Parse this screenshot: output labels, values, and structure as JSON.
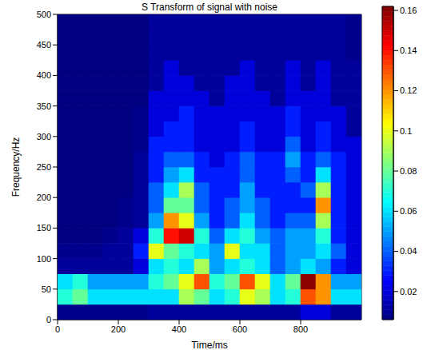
{
  "chart_data": {
    "type": "heatmap",
    "title": "S Transform of signal with noise",
    "xlabel": "Time/ms",
    "ylabel": "Frequency/Hz",
    "xlim": [
      0,
      1000
    ],
    "xticks": [
      0,
      200,
      400,
      600,
      800
    ],
    "ylim": [
      0,
      500
    ],
    "yticks": [
      0,
      50,
      100,
      150,
      200,
      250,
      300,
      350,
      400,
      450,
      500
    ],
    "grid": false,
    "x": [
      25,
      75,
      125,
      175,
      225,
      275,
      325,
      375,
      425,
      475,
      525,
      575,
      625,
      675,
      725,
      775,
      825,
      875,
      925,
      975
    ],
    "y": [
      12.5,
      37.5,
      62.5,
      87.5,
      112.5,
      137.5,
      162.5,
      187.5,
      212.5,
      237.5,
      262.5,
      287.5,
      312.5,
      337.5,
      362.5,
      387.5,
      412.5,
      437.5,
      462.5,
      487.5
    ],
    "cells": [
      [
        0.008,
        0.008,
        0.008,
        0.008,
        0.008,
        0.008,
        0.01,
        0.01,
        0.01,
        0.01,
        0.01,
        0.01,
        0.01,
        0.01,
        0.01,
        0.01,
        0.02,
        0.02,
        0.01,
        0.01
      ],
      [
        0.07,
        0.08,
        0.06,
        0.06,
        0.06,
        0.06,
        0.06,
        0.06,
        0.09,
        0.08,
        0.06,
        0.07,
        0.1,
        0.09,
        0.06,
        0.07,
        0.13,
        0.12,
        0.06,
        0.06
      ],
      [
        0.06,
        0.07,
        0.05,
        0.05,
        0.05,
        0.05,
        0.07,
        0.08,
        0.1,
        0.13,
        0.07,
        0.08,
        0.13,
        0.1,
        0.06,
        0.08,
        0.16,
        0.12,
        0.05,
        0.05
      ],
      [
        0.01,
        0.01,
        0.01,
        0.01,
        0.01,
        0.02,
        0.06,
        0.07,
        0.06,
        0.09,
        0.05,
        0.06,
        0.07,
        0.06,
        0.04,
        0.05,
        0.06,
        0.05,
        0.03,
        0.02
      ],
      [
        0.008,
        0.008,
        0.008,
        0.01,
        0.01,
        0.03,
        0.1,
        0.08,
        0.07,
        0.06,
        0.05,
        0.1,
        0.06,
        0.06,
        0.04,
        0.05,
        0.05,
        0.06,
        0.04,
        0.02
      ],
      [
        0.006,
        0.006,
        0.006,
        0.008,
        0.01,
        0.02,
        0.07,
        0.14,
        0.15,
        0.07,
        0.04,
        0.06,
        0.07,
        0.05,
        0.04,
        0.05,
        0.05,
        0.07,
        0.03,
        0.02
      ],
      [
        0.006,
        0.006,
        0.006,
        0.006,
        0.008,
        0.01,
        0.05,
        0.12,
        0.1,
        0.05,
        0.03,
        0.04,
        0.06,
        0.04,
        0.03,
        0.04,
        0.04,
        0.09,
        0.03,
        0.02
      ],
      [
        0.006,
        0.006,
        0.006,
        0.006,
        0.008,
        0.01,
        0.04,
        0.08,
        0.08,
        0.04,
        0.03,
        0.04,
        0.05,
        0.04,
        0.03,
        0.03,
        0.03,
        0.12,
        0.03,
        0.02
      ],
      [
        0.006,
        0.006,
        0.006,
        0.006,
        0.006,
        0.01,
        0.04,
        0.06,
        0.09,
        0.04,
        0.03,
        0.03,
        0.05,
        0.03,
        0.03,
        0.03,
        0.04,
        0.09,
        0.03,
        0.02
      ],
      [
        0.006,
        0.006,
        0.006,
        0.006,
        0.006,
        0.01,
        0.03,
        0.05,
        0.06,
        0.03,
        0.03,
        0.03,
        0.04,
        0.03,
        0.03,
        0.04,
        0.03,
        0.06,
        0.03,
        0.02
      ],
      [
        0.006,
        0.006,
        0.006,
        0.006,
        0.006,
        0.01,
        0.03,
        0.04,
        0.04,
        0.03,
        0.02,
        0.03,
        0.04,
        0.03,
        0.03,
        0.05,
        0.03,
        0.04,
        0.03,
        0.02
      ],
      [
        0.006,
        0.006,
        0.006,
        0.006,
        0.006,
        0.008,
        0.03,
        0.03,
        0.03,
        0.02,
        0.02,
        0.02,
        0.03,
        0.02,
        0.02,
        0.04,
        0.02,
        0.03,
        0.02,
        0.02
      ],
      [
        0.006,
        0.006,
        0.006,
        0.006,
        0.006,
        0.008,
        0.02,
        0.03,
        0.03,
        0.02,
        0.02,
        0.02,
        0.03,
        0.02,
        0.02,
        0.03,
        0.02,
        0.03,
        0.02,
        0.01
      ],
      [
        0.006,
        0.006,
        0.006,
        0.006,
        0.006,
        0.008,
        0.02,
        0.02,
        0.03,
        0.02,
        0.02,
        0.02,
        0.02,
        0.02,
        0.02,
        0.03,
        0.02,
        0.02,
        0.02,
        0.01
      ],
      [
        0.006,
        0.006,
        0.006,
        0.006,
        0.006,
        0.006,
        0.02,
        0.02,
        0.02,
        0.02,
        0.01,
        0.02,
        0.02,
        0.02,
        0.01,
        0.02,
        0.02,
        0.02,
        0.01,
        0.01
      ],
      [
        0.006,
        0.006,
        0.006,
        0.006,
        0.006,
        0.006,
        0.01,
        0.02,
        0.02,
        0.01,
        0.01,
        0.02,
        0.02,
        0.01,
        0.01,
        0.02,
        0.01,
        0.02,
        0.01,
        0.01
      ],
      [
        0.006,
        0.006,
        0.006,
        0.006,
        0.006,
        0.006,
        0.01,
        0.02,
        0.01,
        0.01,
        0.01,
        0.01,
        0.02,
        0.01,
        0.01,
        0.02,
        0.01,
        0.02,
        0.01,
        0.01
      ],
      [
        0.006,
        0.006,
        0.006,
        0.006,
        0.006,
        0.006,
        0.01,
        0.01,
        0.01,
        0.01,
        0.01,
        0.01,
        0.01,
        0.01,
        0.01,
        0.01,
        0.01,
        0.01,
        0.01,
        0.008
      ],
      [
        0.006,
        0.006,
        0.006,
        0.006,
        0.006,
        0.006,
        0.01,
        0.01,
        0.01,
        0.01,
        0.01,
        0.01,
        0.01,
        0.01,
        0.01,
        0.01,
        0.01,
        0.01,
        0.01,
        0.008
      ],
      [
        0.006,
        0.006,
        0.006,
        0.006,
        0.006,
        0.006,
        0.01,
        0.01,
        0.01,
        0.01,
        0.01,
        0.01,
        0.01,
        0.01,
        0.01,
        0.01,
        0.01,
        0.01,
        0.01,
        0.008
      ]
    ],
    "colorbar": {
      "range": [
        0.006,
        0.162
      ],
      "ticks": [
        0.02,
        0.04,
        0.06,
        0.08,
        0.1,
        0.12,
        0.14,
        0.16
      ]
    }
  }
}
